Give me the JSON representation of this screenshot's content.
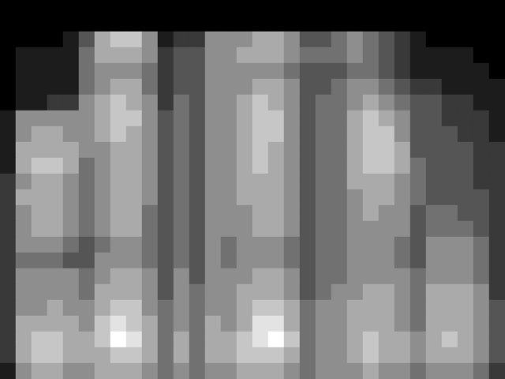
{
  "chart_data": {
    "type": "heatmap",
    "tick_labels": false,
    "grid": false,
    "zlim": [
      0,
      9
    ],
    "cells": [
      [
        0,
        0,
        0,
        0,
        0,
        0,
        0,
        0,
        0,
        0,
        0,
        0,
        0,
        0,
        0,
        0,
        0,
        0,
        0,
        0,
        0,
        0,
        0,
        0,
        0,
        0,
        0,
        0,
        0,
        0,
        0,
        0
      ],
      [
        0,
        0,
        0,
        0,
        0,
        0,
        0,
        0,
        0,
        0,
        0,
        0,
        0,
        0,
        0,
        0,
        0,
        0,
        0,
        0,
        0,
        0,
        0,
        0,
        0,
        0,
        0,
        0,
        0,
        0,
        0,
        0
      ],
      [
        0,
        0,
        0,
        0,
        1,
        3,
        6,
        7,
        7,
        5,
        1,
        2,
        2,
        5,
        5,
        5,
        6,
        6,
        5,
        3,
        3,
        4,
        5,
        4,
        3,
        2,
        1,
        0,
        0,
        0,
        0,
        0
      ],
      [
        0,
        1,
        1,
        1,
        1,
        4,
        6,
        6,
        6,
        5,
        2,
        3,
        3,
        5,
        5,
        6,
        6,
        6,
        5,
        4,
        4,
        4,
        5,
        4,
        3,
        2,
        1,
        1,
        1,
        1,
        0,
        0
      ],
      [
        0,
        1,
        1,
        1,
        1,
        4,
        5,
        5,
        5,
        4,
        2,
        3,
        3,
        5,
        5,
        5,
        5,
        5,
        4,
        3,
        3,
        3,
        4,
        4,
        3,
        2,
        1,
        1,
        1,
        1,
        1,
        0
      ],
      [
        0,
        1,
        1,
        1,
        1,
        4,
        5,
        6,
        6,
        4,
        2,
        3,
        3,
        5,
        5,
        5,
        6,
        6,
        5,
        3,
        3,
        4,
        5,
        5,
        4,
        3,
        2,
        2,
        1,
        1,
        1,
        1
      ],
      [
        0,
        1,
        1,
        2,
        2,
        5,
        6,
        7,
        6,
        5,
        2,
        4,
        3,
        5,
        5,
        6,
        7,
        6,
        5,
        3,
        4,
        4,
        5,
        6,
        5,
        4,
        3,
        3,
        2,
        2,
        1,
        1
      ],
      [
        1,
        5,
        5,
        5,
        5,
        5,
        6,
        7,
        7,
        5,
        3,
        4,
        3,
        5,
        5,
        6,
        7,
        7,
        5,
        3,
        4,
        4,
        6,
        7,
        6,
        5,
        3,
        3,
        2,
        2,
        2,
        1
      ],
      [
        1,
        5,
        6,
        6,
        5,
        5,
        6,
        7,
        6,
        5,
        3,
        4,
        3,
        5,
        5,
        6,
        7,
        7,
        5,
        3,
        4,
        4,
        6,
        7,
        7,
        5,
        3,
        3,
        3,
        2,
        2,
        1
      ],
      [
        1,
        6,
        6,
        6,
        6,
        5,
        5,
        6,
        6,
        5,
        3,
        4,
        3,
        5,
        5,
        6,
        7,
        6,
        5,
        3,
        4,
        4,
        6,
        7,
        7,
        6,
        3,
        3,
        3,
        3,
        2,
        2
      ],
      [
        1,
        6,
        7,
        7,
        6,
        4,
        5,
        6,
        6,
        5,
        3,
        4,
        3,
        5,
        5,
        6,
        7,
        6,
        5,
        3,
        4,
        4,
        6,
        7,
        7,
        6,
        4,
        3,
        3,
        3,
        2,
        2
      ],
      [
        2,
        5,
        6,
        6,
        5,
        4,
        5,
        6,
        6,
        5,
        3,
        4,
        3,
        5,
        5,
        6,
        6,
        6,
        5,
        3,
        4,
        4,
        6,
        6,
        6,
        5,
        4,
        3,
        3,
        3,
        2,
        2
      ],
      [
        2,
        6,
        6,
        6,
        5,
        4,
        5,
        6,
        6,
        5,
        3,
        4,
        3,
        5,
        5,
        6,
        6,
        6,
        5,
        3,
        4,
        4,
        5,
        6,
        6,
        5,
        4,
        3,
        3,
        3,
        3,
        2
      ],
      [
        2,
        5,
        6,
        6,
        5,
        4,
        5,
        6,
        6,
        4,
        3,
        4,
        3,
        5,
        5,
        5,
        6,
        6,
        5,
        3,
        4,
        4,
        5,
        6,
        5,
        5,
        3,
        4,
        4,
        3,
        3,
        2
      ],
      [
        2,
        5,
        6,
        6,
        5,
        4,
        5,
        6,
        6,
        4,
        3,
        4,
        3,
        5,
        5,
        5,
        6,
        6,
        5,
        3,
        4,
        4,
        5,
        5,
        5,
        5,
        3,
        4,
        4,
        4,
        3,
        2
      ],
      [
        2,
        5,
        5,
        5,
        4,
        3,
        4,
        5,
        5,
        4,
        3,
        4,
        3,
        5,
        4,
        5,
        5,
        5,
        4,
        3,
        4,
        4,
        5,
        5,
        5,
        4,
        3,
        5,
        5,
        5,
        4,
        2
      ],
      [
        2,
        4,
        4,
        4,
        3,
        3,
        5,
        5,
        5,
        4,
        3,
        4,
        3,
        5,
        4,
        5,
        5,
        5,
        4,
        3,
        4,
        4,
        5,
        5,
        5,
        4,
        3,
        5,
        5,
        5,
        4,
        2
      ],
      [
        2,
        5,
        5,
        5,
        5,
        4,
        5,
        6,
        6,
        5,
        3,
        5,
        3,
        5,
        5,
        5,
        6,
        6,
        5,
        3,
        4,
        4,
        5,
        5,
        5,
        5,
        4,
        5,
        5,
        5,
        4,
        2
      ],
      [
        2,
        5,
        5,
        5,
        5,
        4,
        6,
        6,
        6,
        5,
        3,
        5,
        4,
        5,
        5,
        6,
        6,
        6,
        5,
        3,
        4,
        5,
        5,
        6,
        6,
        5,
        4,
        6,
        6,
        6,
        5,
        2
      ],
      [
        2,
        5,
        5,
        6,
        5,
        5,
        6,
        7,
        7,
        5,
        4,
        5,
        4,
        5,
        5,
        6,
        7,
        7,
        6,
        4,
        5,
        5,
        6,
        6,
        6,
        5,
        4,
        6,
        6,
        6,
        5,
        3
      ],
      [
        2,
        6,
        6,
        6,
        6,
        5,
        7,
        8,
        7,
        6,
        4,
        5,
        4,
        6,
        5,
        6,
        8,
        8,
        6,
        4,
        5,
        5,
        6,
        6,
        6,
        5,
        4,
        6,
        6,
        6,
        5,
        3
      ],
      [
        2,
        6,
        7,
        7,
        6,
        6,
        7,
        9,
        8,
        6,
        4,
        6,
        4,
        6,
        6,
        7,
        8,
        9,
        7,
        4,
        5,
        5,
        6,
        7,
        6,
        6,
        5,
        6,
        7,
        6,
        5,
        3
      ],
      [
        2,
        6,
        7,
        7,
        6,
        6,
        6,
        7,
        7,
        6,
        4,
        6,
        4,
        6,
        6,
        7,
        7,
        7,
        6,
        4,
        5,
        5,
        6,
        7,
        6,
        6,
        5,
        6,
        6,
        6,
        5,
        3
      ],
      [
        1,
        5,
        6,
        6,
        5,
        5,
        6,
        6,
        6,
        5,
        4,
        5,
        4,
        5,
        5,
        6,
        6,
        6,
        5,
        4,
        5,
        5,
        5,
        6,
        5,
        5,
        4,
        5,
        5,
        5,
        4,
        2
      ]
    ]
  }
}
